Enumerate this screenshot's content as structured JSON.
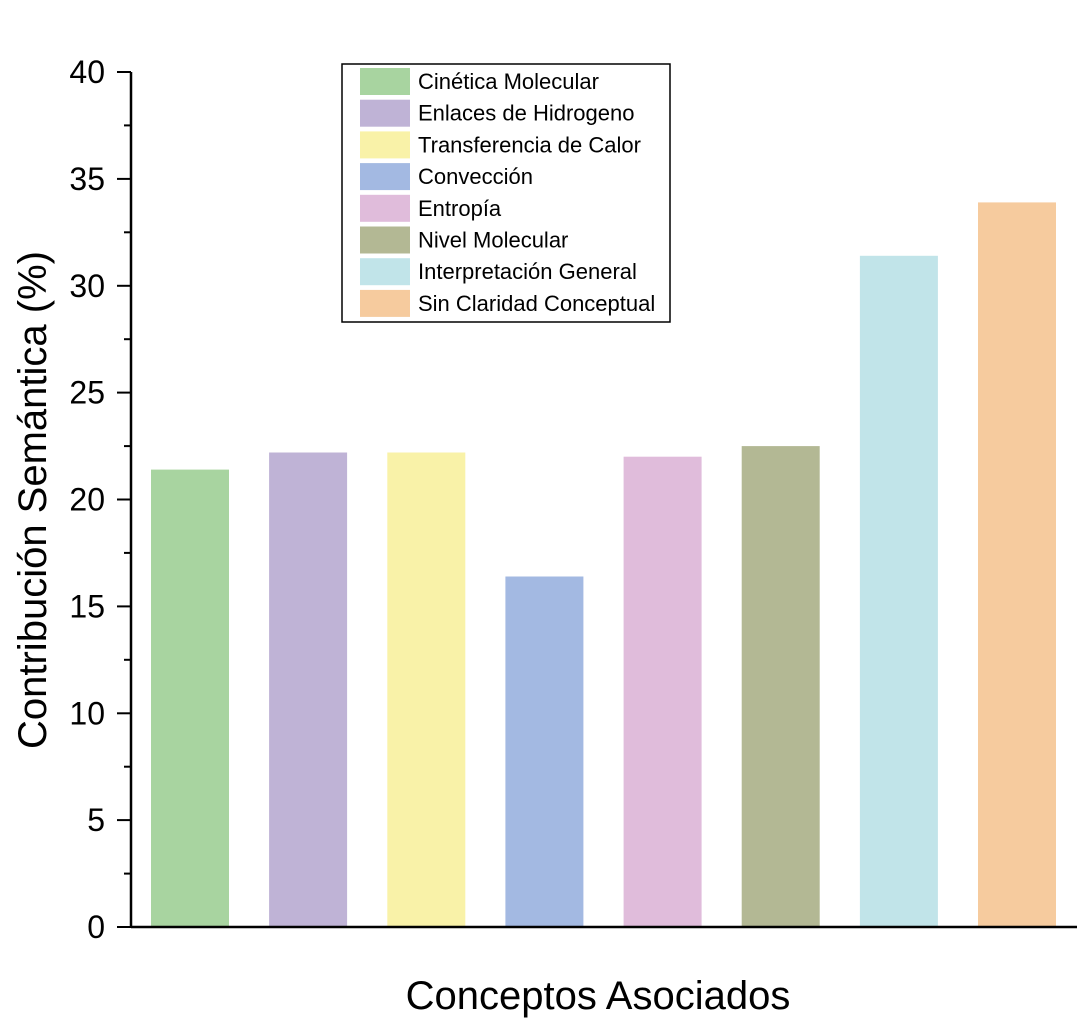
{
  "chart_data": {
    "type": "bar",
    "title": "",
    "xlabel": "Conceptos Asociados",
    "ylabel": "Contribución Semántica (%)",
    "ylim": [
      0,
      40
    ],
    "yticks": [
      0,
      5,
      10,
      15,
      20,
      25,
      30,
      35,
      40
    ],
    "grid": false,
    "legend_position": "top-center",
    "categories": [
      "Cinética Molecular",
      "Enlaces de Hidrogeno",
      "Transferencia de Calor",
      "Convección",
      "Entropía",
      "Nivel Molecular",
      "Interpretación General",
      "Sin Claridad Conceptual"
    ],
    "values": [
      21.4,
      22.2,
      22.2,
      16.4,
      22.0,
      22.5,
      31.4,
      33.9
    ],
    "colors": [
      "#a8d4a0",
      "#bfb3d6",
      "#f9f2a8",
      "#a3b9e2",
      "#e0bcdb",
      "#b3b894",
      "#c1e4e9",
      "#f6cb9e"
    ]
  }
}
